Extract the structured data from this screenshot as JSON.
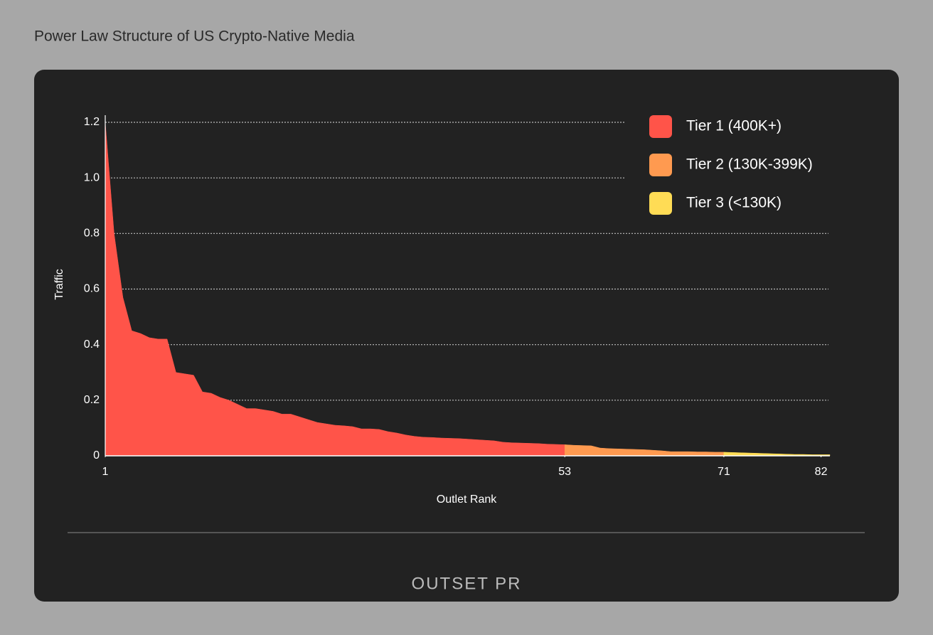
{
  "chart_data": {
    "type": "area",
    "title": "Power Law Structure of US Crypto-Native Media",
    "x_label": "Outlet Rank",
    "y_label": "Traffic",
    "xlim": [
      1,
      83
    ],
    "xticks": [
      1,
      53,
      71,
      82
    ],
    "ylim": [
      0,
      1.2
    ],
    "yticks": [
      0,
      0.2,
      0.4,
      0.6,
      0.8,
      {
        "value": 1,
        "label": "1.0"
      },
      1.2
    ],
    "grid": true,
    "legend": "top-right",
    "series": [
      {
        "name": "Tier 1 (400K+)",
        "color": "#ff5449",
        "x": [
          1,
          2,
          3,
          4,
          5,
          6,
          7,
          8,
          9,
          10,
          11,
          12,
          13,
          14,
          15,
          16,
          17,
          18,
          19,
          20,
          21,
          22,
          23,
          24,
          25,
          26,
          27,
          28,
          29,
          30,
          31,
          32,
          33,
          34,
          35,
          36,
          37,
          38,
          39,
          40,
          41,
          42,
          43,
          44,
          45,
          46,
          47,
          48,
          49,
          50,
          51,
          52,
          53
        ],
        "values": [
          1.2,
          0.8,
          0.57,
          0.45,
          0.44,
          0.425,
          0.42,
          0.42,
          0.3,
          0.295,
          0.29,
          0.23,
          0.225,
          0.21,
          0.2,
          0.185,
          0.17,
          0.17,
          0.165,
          0.16,
          0.15,
          0.15,
          0.14,
          0.13,
          0.12,
          0.115,
          0.11,
          0.108,
          0.105,
          0.097,
          0.097,
          0.095,
          0.087,
          0.082,
          0.075,
          0.07,
          0.067,
          0.066,
          0.064,
          0.063,
          0.062,
          0.06,
          0.058,
          0.056,
          0.054,
          0.049,
          0.047,
          0.046,
          0.045,
          0.044,
          0.042,
          0.041,
          0.04
        ]
      },
      {
        "name": "Tier 2 (130K-399K)",
        "color": "#ff9a50",
        "x": [
          53,
          54,
          55,
          56,
          57,
          58,
          59,
          60,
          61,
          62,
          63,
          64,
          65,
          66,
          67,
          68,
          69,
          70,
          71
        ],
        "values": [
          0.04,
          0.038,
          0.037,
          0.036,
          0.028,
          0.026,
          0.025,
          0.024,
          0.023,
          0.022,
          0.02,
          0.018,
          0.015,
          0.015,
          0.015,
          0.014,
          0.014,
          0.013,
          0.013
        ]
      },
      {
        "name": "Tier 3 (<130K)",
        "color": "#ffdc55",
        "x": [
          71,
          72,
          73,
          74,
          75,
          76,
          77,
          78,
          79,
          80,
          81,
          82,
          83
        ],
        "values": [
          0.013,
          0.012,
          0.011,
          0.01,
          0.009,
          0.008,
          0.007,
          0.006,
          0.005,
          0.005,
          0.004,
          0.004,
          0.004
        ]
      }
    ]
  },
  "branding": "OUTSET PR"
}
